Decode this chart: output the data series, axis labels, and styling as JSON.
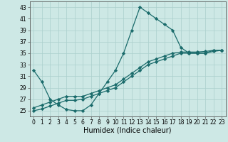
{
  "xlabel": "Humidex (Indice chaleur)",
  "background_color": "#cde8e5",
  "grid_color": "#aacfcc",
  "line_color": "#1a6b6b",
  "xlim": [
    -0.5,
    23.5
  ],
  "ylim": [
    24,
    44
  ],
  "yticks": [
    25,
    27,
    29,
    31,
    33,
    35,
    37,
    39,
    41,
    43
  ],
  "xticks": [
    0,
    1,
    2,
    3,
    4,
    5,
    6,
    7,
    8,
    9,
    10,
    11,
    12,
    13,
    14,
    15,
    16,
    17,
    18,
    19,
    20,
    21,
    22,
    23
  ],
  "xtick_labels": [
    "0",
    "1",
    "2",
    "3",
    "4",
    "5",
    "6",
    "7",
    "8",
    "9",
    "10",
    "11",
    "12",
    "13",
    "14",
    "15",
    "16",
    "17",
    "18",
    "19",
    "20",
    "21",
    "22",
    "23"
  ],
  "series": [
    {
      "x": [
        0,
        1,
        2,
        3,
        4,
        5,
        6,
        7,
        8,
        9,
        10,
        11,
        12,
        13,
        14,
        15,
        16,
        17,
        18,
        19,
        20,
        21,
        22,
        23
      ],
      "y": [
        32,
        30,
        27,
        26,
        25.2,
        25,
        25,
        26,
        28,
        30,
        32,
        35,
        39,
        43,
        42,
        41,
        40,
        39,
        36,
        35,
        35,
        35,
        35.5,
        35.5
      ]
    },
    {
      "x": [
        0,
        1,
        2,
        3,
        4,
        5,
        6,
        7,
        8,
        9,
        10,
        11,
        12,
        13,
        14,
        15,
        16,
        17,
        18,
        19,
        20,
        21,
        22,
        23
      ],
      "y": [
        25.5,
        26,
        26.5,
        27,
        27.5,
        27.5,
        27.5,
        28,
        28.5,
        29,
        29.5,
        30.5,
        31.5,
        32.5,
        33.5,
        34,
        34.5,
        35,
        35.2,
        35.2,
        35.2,
        35.3,
        35.5,
        35.5
      ]
    },
    {
      "x": [
        0,
        1,
        2,
        3,
        4,
        5,
        6,
        7,
        8,
        9,
        10,
        11,
        12,
        13,
        14,
        15,
        16,
        17,
        18,
        19,
        20,
        21,
        22,
        23
      ],
      "y": [
        25,
        25.3,
        25.8,
        26.3,
        26.8,
        26.8,
        27,
        27.5,
        28,
        28.5,
        29,
        30,
        31,
        32,
        33,
        33.5,
        34,
        34.5,
        35,
        35,
        35,
        35,
        35.3,
        35.5
      ]
    }
  ],
  "marker": "D",
  "markersize": 2.2,
  "linewidth": 0.9,
  "xlabel_fontsize": 7,
  "tick_fontsize": 5.5
}
